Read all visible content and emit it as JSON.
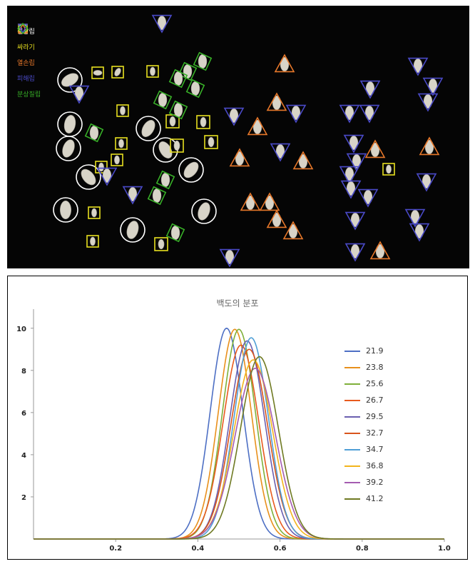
{
  "photo": {
    "legend": [
      {
        "shape": "circle",
        "label": "정상립",
        "color": "#ffffff"
      },
      {
        "shape": "square",
        "label": "싸라기",
        "color": "#e8e020"
      },
      {
        "shape": "triangle",
        "label": "열손립",
        "color": "#e8782a"
      },
      {
        "shape": "inv-triangle",
        "label": "피해립",
        "color": "#4a4ac8"
      },
      {
        "shape": "diamond",
        "label": "분상질립",
        "color": "#38b028"
      }
    ]
  },
  "chart_data": {
    "type": "line",
    "title": "백도의 분포",
    "xlim": [
      0,
      1.0
    ],
    "ylim": [
      0,
      10.5
    ],
    "xticks": [
      "0.2",
      "0.4",
      "0.6",
      "0.8",
      "1.0"
    ],
    "yticks": [
      "2",
      "4",
      "6",
      "8",
      "10"
    ],
    "legend_position": "right",
    "series": [
      {
        "name": "21.9",
        "color": "#4d6fc4",
        "mu": 0.47,
        "peak": 10.0
      },
      {
        "name": "23.8",
        "color": "#e8901c",
        "mu": 0.49,
        "peak": 9.95
      },
      {
        "name": "25.6",
        "color": "#7fb03a",
        "mu": 0.5,
        "peak": 9.95
      },
      {
        "name": "26.7",
        "color": "#e85a1e",
        "mu": 0.505,
        "peak": 9.2
      },
      {
        "name": "29.5",
        "color": "#6a5fb0",
        "mu": 0.52,
        "peak": 9.4
      },
      {
        "name": "32.7",
        "color": "#d9541c",
        "mu": 0.525,
        "peak": 9.0
      },
      {
        "name": "34.7",
        "color": "#4f9fd6",
        "mu": 0.53,
        "peak": 9.55
      },
      {
        "name": "36.8",
        "color": "#f2b41c",
        "mu": 0.535,
        "peak": 8.5
      },
      {
        "name": "39.2",
        "color": "#a45cb0",
        "mu": 0.54,
        "peak": 8.1
      },
      {
        "name": "41.2",
        "color": "#6f7a22",
        "mu": 0.55,
        "peak": 8.65
      }
    ]
  }
}
